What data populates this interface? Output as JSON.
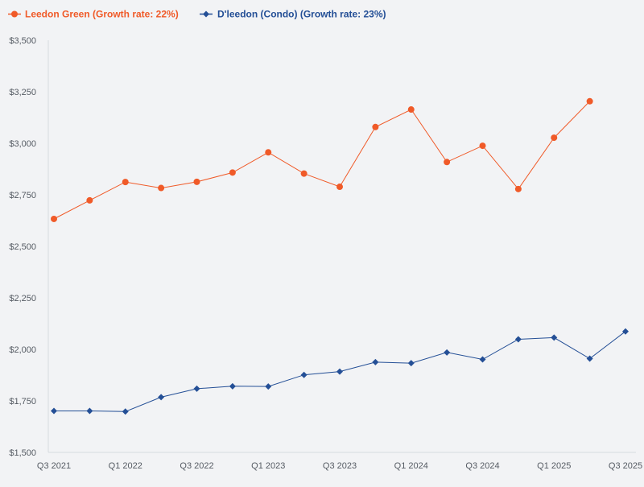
{
  "chart_data": {
    "type": "line",
    "title": "",
    "xlabel": "",
    "ylabel": "",
    "ylim": [
      1500,
      3500
    ],
    "yticks": [
      1500,
      1750,
      2000,
      2250,
      2500,
      2750,
      3000,
      3250,
      3500
    ],
    "ytick_labels": [
      "$1,500",
      "$1,750",
      "$2,000",
      "$2,250",
      "$2,500",
      "$2,750",
      "$3,000",
      "$3,250",
      "$3,500"
    ],
    "categories": [
      "Q3 2021",
      "Q4 2021",
      "Q1 2022",
      "Q2 2022",
      "Q3 2022",
      "Q4 2022",
      "Q1 2023",
      "Q2 2023",
      "Q3 2023",
      "Q4 2023",
      "Q1 2024",
      "Q2 2024",
      "Q3 2024",
      "Q4 2024",
      "Q1 2025",
      "Q2 2025",
      "Q3 2025"
    ],
    "x_tick_labels": [
      "Q3 2021",
      "Q1 2022",
      "Q3 2022",
      "Q1 2023",
      "Q3 2023",
      "Q1 2024",
      "Q3 2024",
      "Q1 2025",
      "Q3 2025"
    ],
    "grid": false,
    "legend_position": "top-left",
    "series": [
      {
        "name": "Leedon Green (Growth rate: 22%)",
        "color": "#f05a28",
        "marker": "circle",
        "values": [
          2633,
          2723,
          2812,
          2783,
          2813,
          2858,
          2956,
          2853,
          2789,
          3079,
          3164,
          2909,
          2988,
          2778,
          3027,
          3204,
          null
        ]
      },
      {
        "name": "D'leedon (Condo) (Growth rate: 23%)",
        "color": "#244f96",
        "marker": "diamond",
        "values": [
          1701,
          1701,
          1698,
          1768,
          1809,
          1821,
          1820,
          1876,
          1892,
          1938,
          1933,
          1985,
          1951,
          2049,
          2057,
          1955,
          2087
        ]
      }
    ]
  }
}
